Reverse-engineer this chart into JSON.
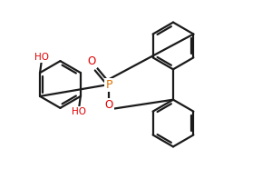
{
  "bg_color": "#ffffff",
  "bond_color": "#1a1a1a",
  "atom_colors": {
    "O": "#e00000",
    "P": "#e07000",
    "C": "#1a1a1a"
  },
  "line_width": 1.6,
  "figsize": [
    3.0,
    1.86
  ],
  "dpi": 100,
  "xlim": [
    0,
    9.5
  ],
  "ylim": [
    0,
    5.9
  ]
}
